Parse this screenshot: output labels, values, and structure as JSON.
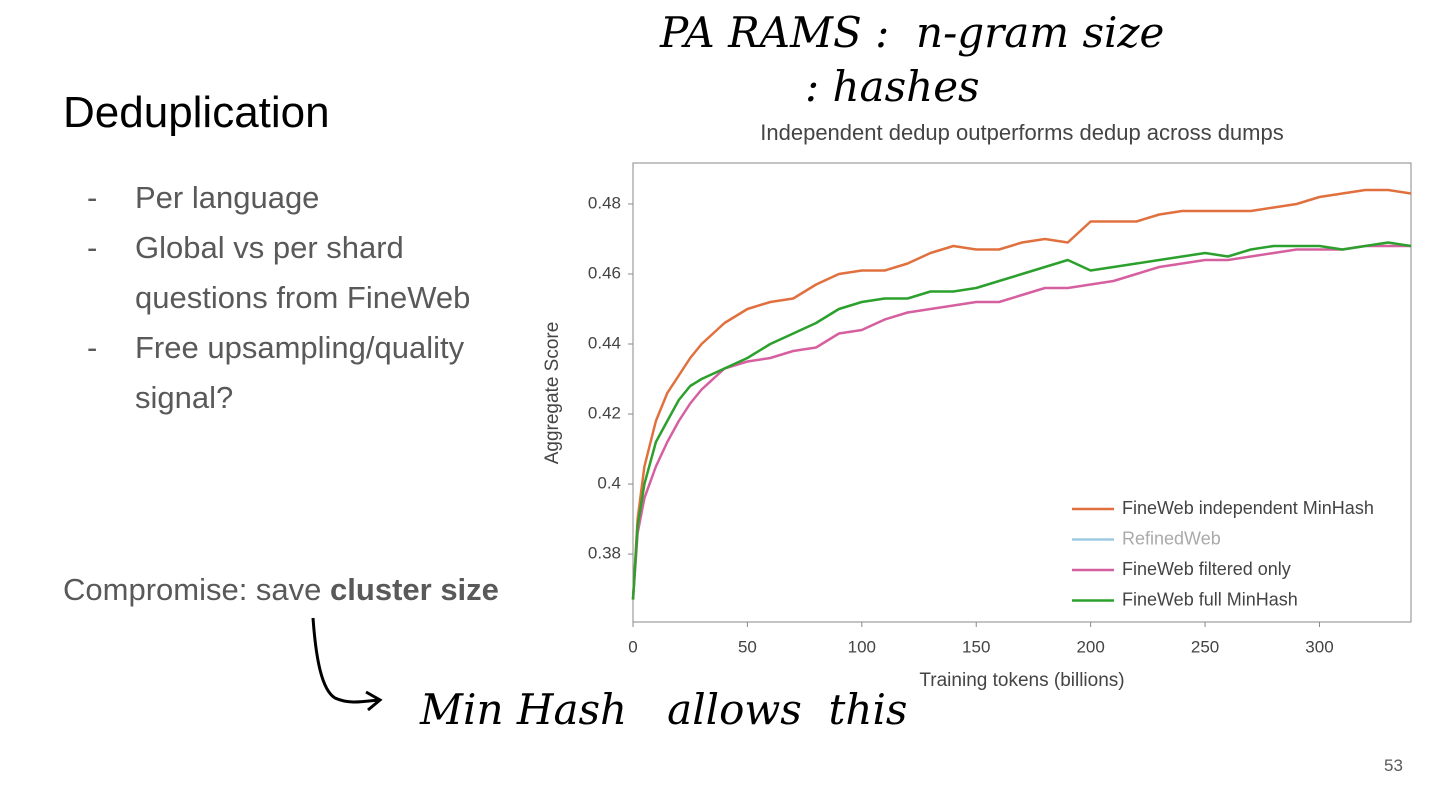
{
  "slide": {
    "title": "Deduplication",
    "bullets": [
      "Per language",
      "Global vs per shard questions from FineWeb",
      "Free upsampling/quality signal?"
    ],
    "bullet_marker": "-",
    "compromise": {
      "text": "Compromise: save",
      "bold": "cluster size"
    },
    "handwriting": [
      "PA RAMS :  n-gram size",
      ": hashes",
      "Min Hash   allows  this"
    ],
    "page_number": "53"
  },
  "chart_data": {
    "type": "line",
    "title": "Independent dedup outperforms dedup across dumps",
    "x_label": "Training tokens (billions)",
    "y_label": "Aggregate Score",
    "x": [
      0,
      2,
      5,
      10,
      15,
      20,
      25,
      30,
      40,
      50,
      60,
      70,
      80,
      90,
      100,
      110,
      120,
      130,
      140,
      150,
      160,
      170,
      180,
      190,
      200,
      210,
      220,
      230,
      240,
      250,
      260,
      270,
      280,
      290,
      300,
      310,
      320,
      330,
      340
    ],
    "series": [
      {
        "name": "FineWeb independent MinHash",
        "color": "#e1703f",
        "visible": true,
        "values": [
          0.367,
          0.39,
          0.405,
          0.418,
          0.426,
          0.431,
          0.436,
          0.44,
          0.446,
          0.45,
          0.452,
          0.453,
          0.457,
          0.46,
          0.461,
          0.461,
          0.463,
          0.466,
          0.468,
          0.467,
          0.467,
          0.469,
          0.47,
          0.469,
          0.475,
          0.475,
          0.475,
          0.477,
          0.478,
          0.478,
          0.478,
          0.478,
          0.479,
          0.48,
          0.482,
          0.483,
          0.484,
          0.484,
          0.483
        ]
      },
      {
        "name": "RefinedWeb",
        "color": "#9ecae1",
        "visible": false,
        "values": [
          null,
          null,
          null,
          null,
          null,
          null,
          null,
          null,
          null,
          null,
          null,
          null,
          null,
          null,
          null,
          null,
          null,
          null,
          null,
          null,
          null,
          null,
          null,
          null,
          null,
          null,
          null,
          null,
          null,
          null,
          null,
          null,
          null,
          null,
          null,
          null,
          null,
          null,
          null
        ]
      },
      {
        "name": "FineWeb filtered only",
        "color": "#d6609f",
        "visible": true,
        "values": [
          0.367,
          0.386,
          0.396,
          0.405,
          0.412,
          0.418,
          0.423,
          0.427,
          0.433,
          0.435,
          0.436,
          0.438,
          0.439,
          0.443,
          0.444,
          0.447,
          0.449,
          0.45,
          0.451,
          0.452,
          0.452,
          0.454,
          0.456,
          0.456,
          0.457,
          0.458,
          0.46,
          0.462,
          0.463,
          0.464,
          0.464,
          0.465,
          0.466,
          0.467,
          0.467,
          0.467,
          0.468,
          0.468,
          0.468
        ]
      },
      {
        "name": "FineWeb full MinHash",
        "color": "#2ca02c",
        "visible": true,
        "values": [
          0.367,
          0.388,
          0.4,
          0.412,
          0.418,
          0.424,
          0.428,
          0.43,
          0.433,
          0.436,
          0.44,
          0.443,
          0.446,
          0.45,
          0.452,
          0.453,
          0.453,
          0.455,
          0.455,
          0.456,
          0.458,
          0.46,
          0.462,
          0.464,
          0.461,
          0.462,
          0.463,
          0.464,
          0.465,
          0.466,
          0.465,
          0.467,
          0.468,
          0.468,
          0.468,
          0.467,
          0.468,
          0.469,
          0.468
        ]
      }
    ],
    "xlim": [
      0,
      340
    ],
    "xticks": [
      0,
      50,
      100,
      150,
      200,
      250,
      300
    ],
    "ylim": [
      0.3606,
      0.4917
    ],
    "yticks": [
      0.38,
      0.4,
      0.42,
      0.44,
      0.46,
      0.48
    ],
    "grid": false,
    "legend": "lower-right"
  }
}
